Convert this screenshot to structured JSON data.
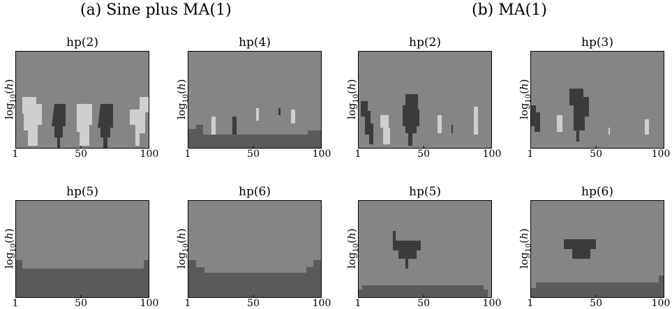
{
  "group_titles": [
    "(a) Sine plus MA(1)",
    "(b) MA(1)"
  ],
  "colors": {
    "background_gray": "#858585",
    "light_gray": "#cfcfcf",
    "dark_gray": "#3b3b3b",
    "mid_dark_gray": "#5a5a5a"
  },
  "chart_data": [
    {
      "type": "heatmap",
      "group": "(a) Sine plus MA(1)",
      "title": "hp(2)",
      "ylabel": "log10(h)",
      "xticks": [
        "1",
        "50",
        "100"
      ]
    },
    {
      "type": "heatmap",
      "group": "(a) Sine plus MA(1)",
      "title": "hp(4)",
      "ylabel": "log10(h)",
      "xticks": [
        "1",
        "50",
        "100"
      ]
    },
    {
      "type": "heatmap",
      "group": "(b) MA(1)",
      "title": "hp(2)",
      "ylabel": "log10(h)",
      "xticks": [
        "1",
        "50",
        "100"
      ]
    },
    {
      "type": "heatmap",
      "group": "(b) MA(1)",
      "title": "hp(3)",
      "ylabel": "log10(h)",
      "xticks": [
        "1",
        "50",
        "100"
      ]
    },
    {
      "type": "heatmap",
      "group": "(a) Sine plus MA(1)",
      "title": "hp(5)",
      "ylabel": "log10(h)",
      "xticks": [
        "1",
        "50",
        "100"
      ]
    },
    {
      "type": "heatmap",
      "group": "(a) Sine plus MA(1)",
      "title": "hp(6)",
      "ylabel": "log10(h)",
      "xticks": [
        "1",
        "50",
        "100"
      ]
    },
    {
      "type": "heatmap",
      "group": "(b) MA(1)",
      "title": "hp(5)",
      "ylabel": "log10(h)",
      "xticks": [
        "1",
        "50",
        "100"
      ]
    },
    {
      "type": "heatmap",
      "group": "(b) MA(1)",
      "title": "hp(6)",
      "ylabel": "log10(h)",
      "xticks": [
        "1",
        "50",
        "100"
      ]
    }
  ]
}
